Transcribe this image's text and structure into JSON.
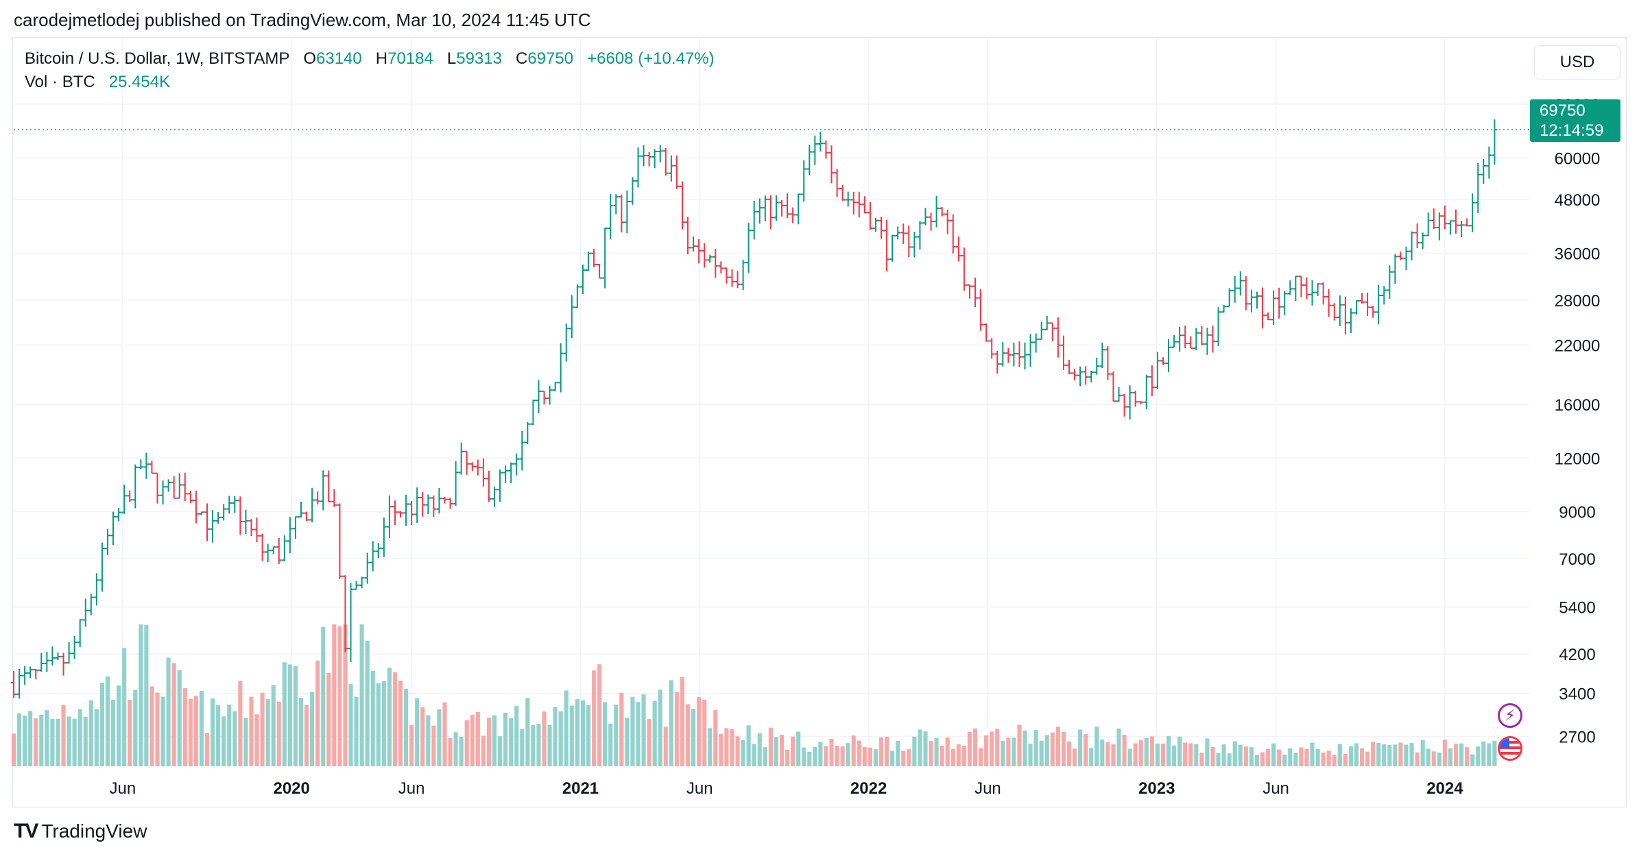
{
  "header": {
    "published_by": "carodejmetlodej published on TradingView.com, Mar 10, 2024 11:45 UTC"
  },
  "legend": {
    "symbol": "Bitcoin / U.S. Dollar, 1W, BITSTAMP",
    "o_label": "O",
    "o_value": "63140",
    "h_label": "H",
    "h_value": "70184",
    "l_label": "L",
    "l_value": "59313",
    "c_label": "C",
    "c_value": "69750",
    "change": "+6608 (+10.47%)",
    "vol_label": "Vol · BTC",
    "vol_value": "25.454K"
  },
  "currency_button": "USD",
  "last_price_tag": {
    "price": "69750",
    "countdown": "12:14:59"
  },
  "footer": {
    "brand_logo": "TV",
    "brand": "TradingView"
  },
  "colors": {
    "up": "#089981",
    "down": "#f23645",
    "up_volume": "#92d2cc",
    "down_volume": "#f7a9a7",
    "grid": "#f0f3fa"
  },
  "chart_data": {
    "type": "candlestick",
    "interval": "1W",
    "y_scale": "log",
    "ylim": [
      2300,
      90000
    ],
    "y_ticks": [
      "80000",
      "60000",
      "48000",
      "36000",
      "28000",
      "22000",
      "16000",
      "12000",
      "9000",
      "7000",
      "5400",
      "4200",
      "3400",
      "2700"
    ],
    "x_ticks": [
      {
        "date": "2019-06-01",
        "label": "Jun",
        "bold": false
      },
      {
        "date": "2020-01-01",
        "label": "2020",
        "bold": true
      },
      {
        "date": "2020-06-01",
        "label": "Jun",
        "bold": false
      },
      {
        "date": "2021-01-01",
        "label": "2021",
        "bold": true
      },
      {
        "date": "2021-06-01",
        "label": "Jun",
        "bold": false
      },
      {
        "date": "2022-01-01",
        "label": "2022",
        "bold": true
      },
      {
        "date": "2022-06-01",
        "label": "Jun",
        "bold": false
      },
      {
        "date": "2023-01-01",
        "label": "2023",
        "bold": true
      },
      {
        "date": "2023-06-01",
        "label": "Jun",
        "bold": false
      },
      {
        "date": "2024-01-01",
        "label": "2024",
        "bold": true
      }
    ],
    "x_range": [
      "2019-01-14",
      "2024-04-10"
    ],
    "last_price": 69750,
    "price_path": [
      [
        "2019-01-14",
        3600
      ],
      [
        "2019-02-18",
        3800
      ],
      [
        "2019-03-25",
        4100
      ],
      [
        "2019-04-15",
        5200
      ],
      [
        "2019-05-13",
        7800
      ],
      [
        "2019-06-24",
        11500
      ],
      [
        "2019-07-22",
        10000
      ],
      [
        "2019-08-19",
        10300
      ],
      [
        "2019-09-23",
        8200
      ],
      [
        "2019-10-21",
        9300
      ],
      [
        "2019-11-25",
        7300
      ],
      [
        "2019-12-16",
        7200
      ],
      [
        "2020-01-13",
        8700
      ],
      [
        "2020-02-10",
        10300
      ],
      [
        "2020-02-24",
        9000
      ],
      [
        "2020-03-09",
        4500
      ],
      [
        "2020-03-16",
        5900
      ],
      [
        "2020-04-13",
        6900
      ],
      [
        "2020-05-04",
        9000
      ],
      [
        "2020-06-15",
        9300
      ],
      [
        "2020-07-13",
        9200
      ],
      [
        "2020-08-03",
        11800
      ],
      [
        "2020-09-07",
        10200
      ],
      [
        "2020-10-12",
        11500
      ],
      [
        "2020-11-02",
        15500
      ],
      [
        "2020-11-30",
        19000
      ],
      [
        "2020-12-28",
        29000
      ],
      [
        "2021-01-11",
        36000
      ],
      [
        "2021-01-25",
        33000
      ],
      [
        "2021-02-08",
        47000
      ],
      [
        "2021-02-22",
        45000
      ],
      [
        "2021-03-15",
        58000
      ],
      [
        "2021-04-12",
        60000
      ],
      [
        "2021-04-26",
        57000
      ],
      [
        "2021-05-17",
        37000
      ],
      [
        "2021-06-14",
        35000
      ],
      [
        "2021-07-05",
        33000
      ],
      [
        "2021-07-19",
        32000
      ],
      [
        "2021-08-09",
        45000
      ],
      [
        "2021-09-06",
        46000
      ],
      [
        "2021-09-27",
        43000
      ],
      [
        "2021-10-18",
        61000
      ],
      [
        "2021-11-08",
        64000
      ],
      [
        "2021-11-29",
        49000
      ],
      [
        "2021-12-20",
        47000
      ],
      [
        "2022-01-10",
        42000
      ],
      [
        "2022-01-24",
        37000
      ],
      [
        "2022-02-21",
        39000
      ],
      [
        "2022-03-28",
        46000
      ],
      [
        "2022-04-18",
        39000
      ],
      [
        "2022-05-09",
        29000
      ],
      [
        "2022-06-13",
        20500
      ],
      [
        "2022-07-11",
        21000
      ],
      [
        "2022-08-15",
        24000
      ],
      [
        "2022-09-19",
        19000
      ],
      [
        "2022-10-24",
        20500
      ],
      [
        "2022-11-07",
        16500
      ],
      [
        "2022-12-12",
        16800
      ],
      [
        "2023-01-16",
        21000
      ],
      [
        "2023-02-20",
        23500
      ],
      [
        "2023-03-13",
        22000
      ],
      [
        "2023-03-27",
        28500
      ],
      [
        "2023-04-17",
        29500
      ],
      [
        "2023-05-22",
        26800
      ],
      [
        "2023-06-19",
        30500
      ],
      [
        "2023-07-24",
        29200
      ],
      [
        "2023-08-21",
        26000
      ],
      [
        "2023-09-18",
        26600
      ],
      [
        "2023-10-16",
        28700
      ],
      [
        "2023-10-30",
        35000
      ],
      [
        "2023-12-04",
        42000
      ],
      [
        "2024-01-08",
        44000
      ],
      [
        "2024-01-22",
        41000
      ],
      [
        "2024-02-12",
        52000
      ],
      [
        "2024-03-04",
        68000
      ],
      [
        "2024-03-10",
        69750
      ]
    ],
    "volume_path": [
      [
        "2019-01-14",
        0.3
      ],
      [
        "2019-05-13",
        0.55
      ],
      [
        "2019-06-24",
        0.8
      ],
      [
        "2019-09-23",
        0.35
      ],
      [
        "2020-03-09",
        0.95
      ],
      [
        "2020-05-04",
        0.5
      ],
      [
        "2020-08-03",
        0.3
      ],
      [
        "2020-12-28",
        0.4
      ],
      [
        "2021-01-11",
        0.65
      ],
      [
        "2021-03-15",
        0.35
      ],
      [
        "2021-05-17",
        0.55
      ],
      [
        "2021-07-19",
        0.25
      ],
      [
        "2021-11-08",
        0.15
      ],
      [
        "2022-06-13",
        0.22
      ],
      [
        "2022-11-07",
        0.2
      ],
      [
        "2023-03-13",
        0.15
      ],
      [
        "2023-06-19",
        0.12
      ],
      [
        "2024-03-10",
        0.14
      ]
    ]
  }
}
